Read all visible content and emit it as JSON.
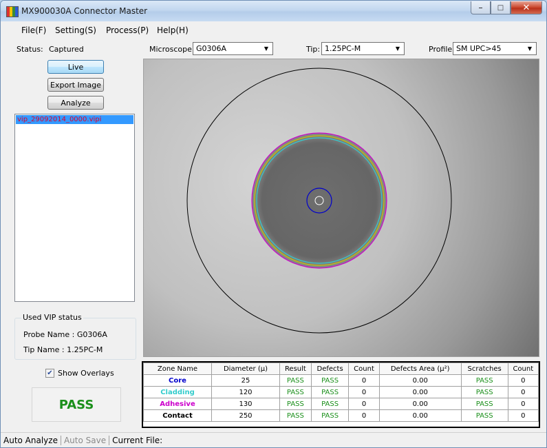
{
  "window": {
    "title": "MX900030A Connector Master",
    "icon": "app-logo-icon",
    "controls": [
      "minimize-icon",
      "maximize-icon",
      "close-icon"
    ]
  },
  "menu": [
    "File(F)",
    "Setting(S)",
    "Process(P)",
    "Help(H)"
  ],
  "status": {
    "label": "Status:",
    "value": "Captured"
  },
  "buttons": {
    "live": "Live",
    "export": "Export Image",
    "analyze": "Analyze"
  },
  "files": [
    "vip_29092014_0000.vipi"
  ],
  "vip_status": {
    "legend": "Used VIP status",
    "probe": "Probe Name :  G0306A",
    "tip": "Tip   Name :  1.25PC-M"
  },
  "show_overlays": {
    "label": "Show Overlays",
    "checked": true
  },
  "result": "PASS",
  "toolbar": {
    "microscope_label": "Microscope:",
    "microscope_value": "G0306A",
    "tip_label": "Tip:",
    "tip_value": "1.25PC-M",
    "profile_label": "Profile:",
    "profile_value": "SM UPC>45"
  },
  "zone_table": {
    "headers": [
      "Zone Name",
      "Diameter (μ)",
      "Result",
      "Defects",
      "Count",
      "Defects Area (μ²)",
      "Scratches",
      "Count"
    ],
    "rows": [
      {
        "zone": "Core",
        "color": "#0000cc",
        "diameter": "25",
        "result": "PASS",
        "defects": "PASS",
        "count": "0",
        "area": "0.00",
        "scratches": "PASS",
        "scount": "0"
      },
      {
        "zone": "Cladding",
        "color": "#33cccc",
        "diameter": "120",
        "result": "PASS",
        "defects": "PASS",
        "count": "0",
        "area": "0.00",
        "scratches": "PASS",
        "scount": "0"
      },
      {
        "zone": "Adhesive",
        "color": "#cc00cc",
        "diameter": "130",
        "result": "PASS",
        "defects": "PASS",
        "count": "0",
        "area": "0.00",
        "scratches": "PASS",
        "scount": "0"
      },
      {
        "zone": "Contact",
        "color": "#000000",
        "diameter": "250",
        "result": "PASS",
        "defects": "PASS",
        "count": "0",
        "area": "0.00",
        "scratches": "PASS",
        "scount": "0"
      }
    ]
  },
  "statusbar": {
    "auto_analyze": "Auto Analyze",
    "auto_save": "Auto Save",
    "current_file": "Current File:"
  }
}
